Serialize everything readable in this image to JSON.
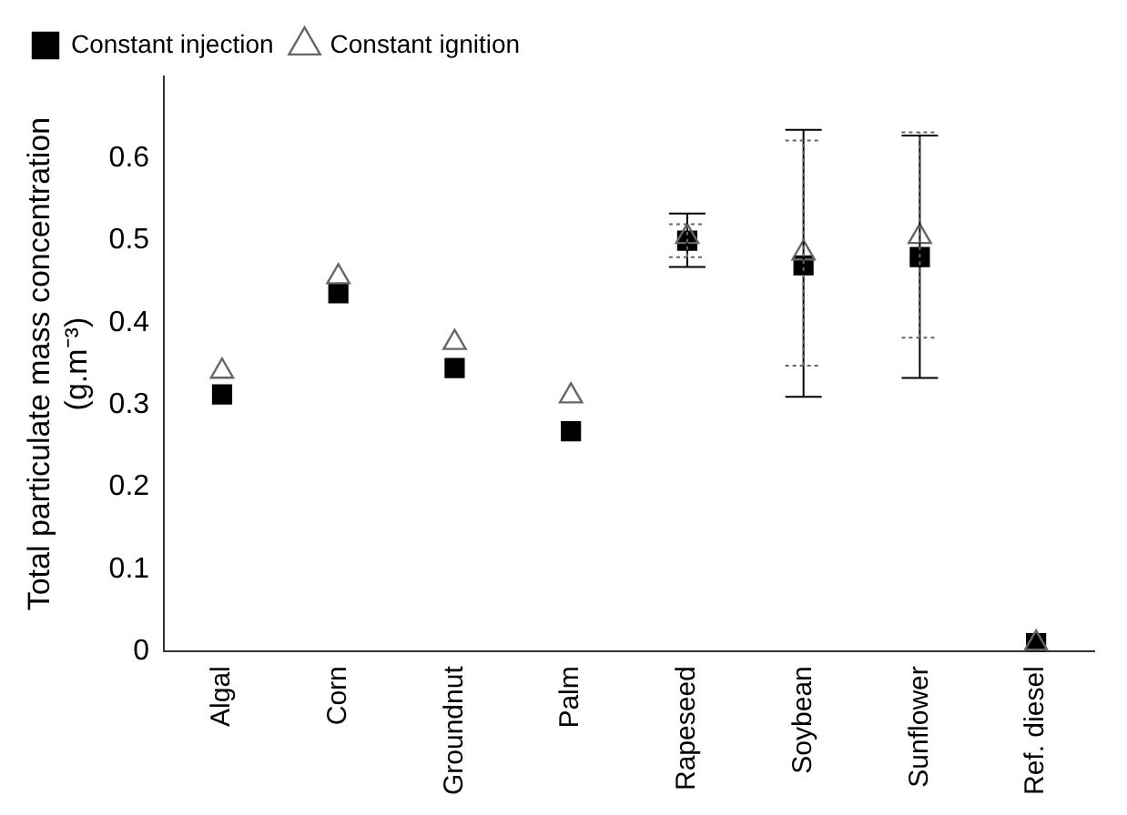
{
  "chart_data": {
    "type": "scatter",
    "ylabel": "Total particulate mass concentration\n(g.m⁻³)",
    "categories": [
      "Algal",
      "Corn",
      "Groundnut",
      "Palm",
      "Rapeseed",
      "Soybean",
      "Sunflower",
      "Ref. diesel"
    ],
    "series": [
      {
        "name": "Constant injection",
        "color": "#000000",
        "marker": "square",
        "values": [
          0.313,
          0.436,
          0.345,
          0.268,
          0.5,
          0.47,
          0.48,
          0.01
        ],
        "errors": [
          null,
          null,
          null,
          null,
          [
            0.468,
            0.533
          ],
          [
            0.31,
            0.635
          ],
          [
            0.333,
            0.628
          ],
          null
        ]
      },
      {
        "name": "Constant ignition",
        "color": "#666666",
        "marker": "triangle",
        "line_style": "dotted",
        "values": [
          0.341,
          0.456,
          0.376,
          0.311,
          0.505,
          0.485,
          0.505,
          0.01
        ],
        "errors": [
          null,
          null,
          null,
          null,
          [
            0.48,
            0.52
          ],
          [
            0.348,
            0.622
          ],
          [
            0.382,
            0.632
          ],
          null
        ]
      }
    ],
    "ylim": [
      0,
      0.7
    ],
    "yticks": [
      0,
      0.1,
      0.2,
      0.3,
      0.4,
      0.5,
      0.6
    ],
    "grid": false,
    "legend": "top left"
  }
}
